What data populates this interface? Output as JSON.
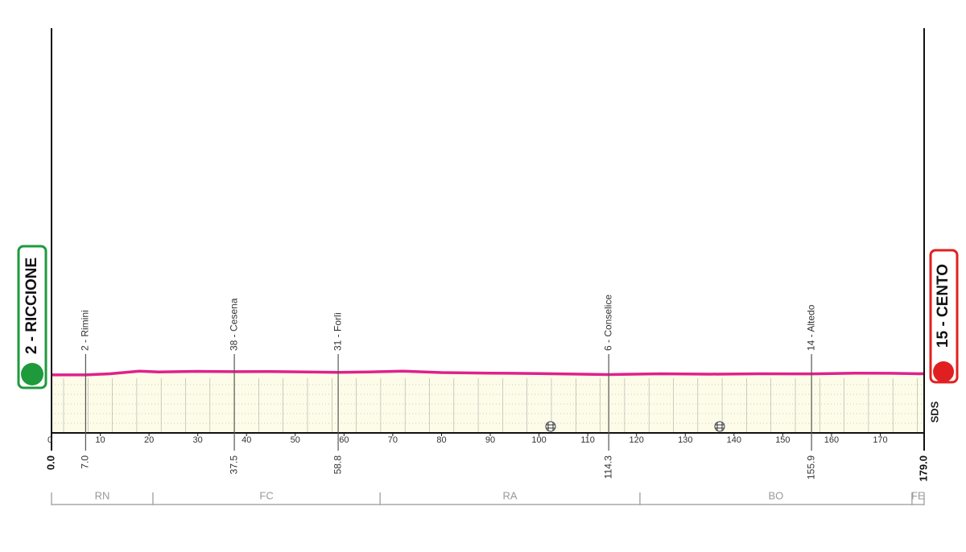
{
  "chart_data": {
    "type": "area",
    "start": {
      "label": "2 - RICCIONE",
      "km": {
        "value": 0,
        "label": "0.0"
      }
    },
    "finish": {
      "label": "15 - CENTO",
      "km": {
        "value": 179,
        "label": "179.0"
      }
    },
    "x": [
      0,
      7,
      12,
      18,
      22,
      30,
      37.5,
      45,
      58.8,
      65,
      72,
      80,
      90,
      100,
      114.3,
      125,
      135,
      145,
      155.9,
      165,
      172,
      179
    ],
    "values": [
      2,
      2,
      15,
      45,
      35,
      42,
      38,
      40,
      31,
      35,
      45,
      28,
      22,
      18,
      6,
      15,
      10,
      15,
      14,
      22,
      20,
      15
    ],
    "color": "#e0218a",
    "fill": "#fcfce8",
    "xlim": [
      0,
      179
    ],
    "ylim": [
      -650,
      3900
    ],
    "xticks": [
      0,
      10,
      20,
      30,
      40,
      50,
      60,
      70,
      80,
      90,
      100,
      110,
      120,
      130,
      140,
      150,
      160,
      170
    ],
    "waypoints": [
      {
        "label": "2 - Rimini",
        "km": {
          "value": 7,
          "label": "7.0"
        }
      },
      {
        "label": "38 - Cesena",
        "km": {
          "value": 37.5,
          "label": "37.5"
        }
      },
      {
        "label": "31 - Forlì",
        "km": {
          "value": 58.8,
          "label": "58.8"
        }
      },
      {
        "label": "6 - Conselice",
        "km": {
          "value": 114.3,
          "label": "114.3"
        }
      },
      {
        "label": "14 - Altedo",
        "km": {
          "value": 155.9,
          "label": "155.9"
        }
      }
    ],
    "regions": [
      {
        "name": "RN",
        "start": 0,
        "end": 20.8
      },
      {
        "name": "FC",
        "start": 20.8,
        "end": 67.4
      },
      {
        "name": "RA",
        "start": 67.4,
        "end": 120.7
      },
      {
        "name": "BO",
        "start": 120.7,
        "end": 176.5
      },
      {
        "name": "FE",
        "start": 176.5,
        "end": 179
      }
    ],
    "logo": "SDS"
  }
}
